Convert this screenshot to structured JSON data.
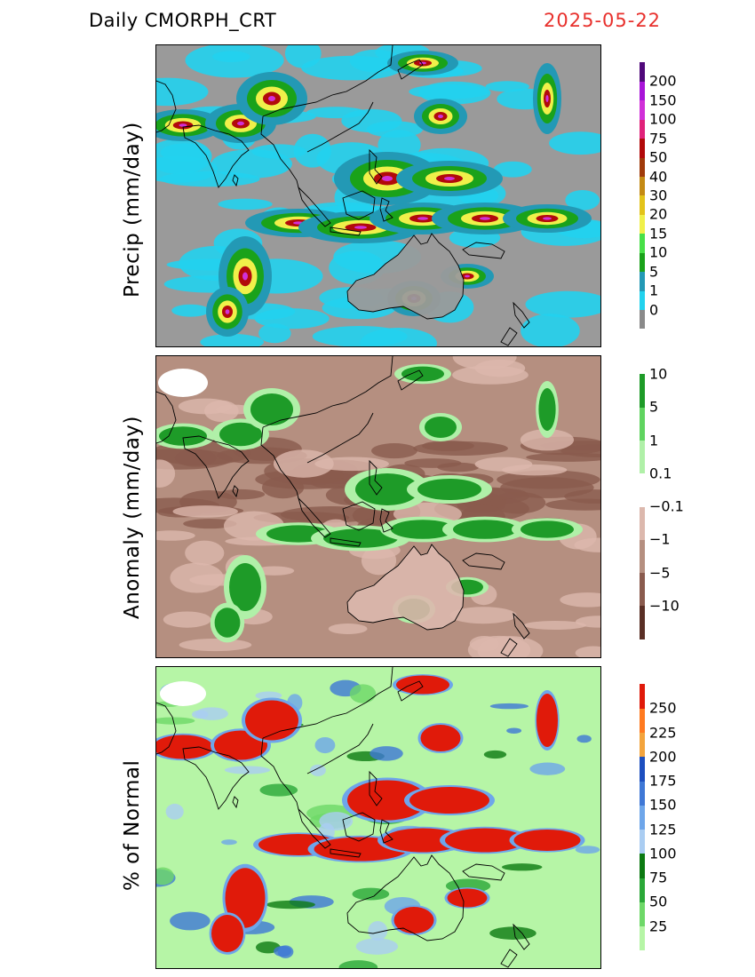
{
  "header": {
    "title": "Daily CMORPH_CRT",
    "date": "2025-05-22"
  },
  "panels": [
    {
      "label": "Precip (mm/day)",
      "map_name": "precip-map",
      "background": "#9a9a9a",
      "legend": {
        "colors": [
          "#8a8a8a",
          "#22d2ee",
          "#2399b5",
          "#1aa21a",
          "#48e048",
          "#f0f04a",
          "#e3c31a",
          "#c48a14",
          "#a03a0a",
          "#b20a0a",
          "#e0227a",
          "#d030d8",
          "#a814d8",
          "#50087a"
        ],
        "labels": [
          "0",
          "1",
          "5",
          "10",
          "15",
          "20",
          "30",
          "40",
          "50",
          "75",
          "100",
          "150",
          "200"
        ]
      }
    },
    {
      "label": "Anomaly (mm/day)",
      "map_name": "anomaly-map",
      "background": "#b58f80",
      "legend": {
        "colors": [
          "#5a2f25",
          "#8a5b4e",
          "#b58f80",
          "#dcb8ad",
          "#ffffff",
          "#b0f0a8",
          "#60d460",
          "#1e9b28"
        ],
        "labels": [
          "−10",
          "−5",
          "−1",
          "−0.1",
          "0.1",
          "1",
          "5",
          "10"
        ]
      }
    },
    {
      "label": "% of Normal",
      "map_name": "percent-normal-map",
      "background": "#b6f5a6",
      "legend": {
        "colors": [
          "#b6f5a6",
          "#6ed868",
          "#2ba838",
          "#0c7a12",
          "#aacdf2",
          "#6ea6ea",
          "#3f78d6",
          "#1d4fbf",
          "#f3a43d",
          "#ff7a20",
          "#e01a0a"
        ],
        "labels": [
          "25",
          "50",
          "75",
          "100",
          "125",
          "150",
          "175",
          "200",
          "225",
          "250"
        ]
      }
    }
  ]
}
